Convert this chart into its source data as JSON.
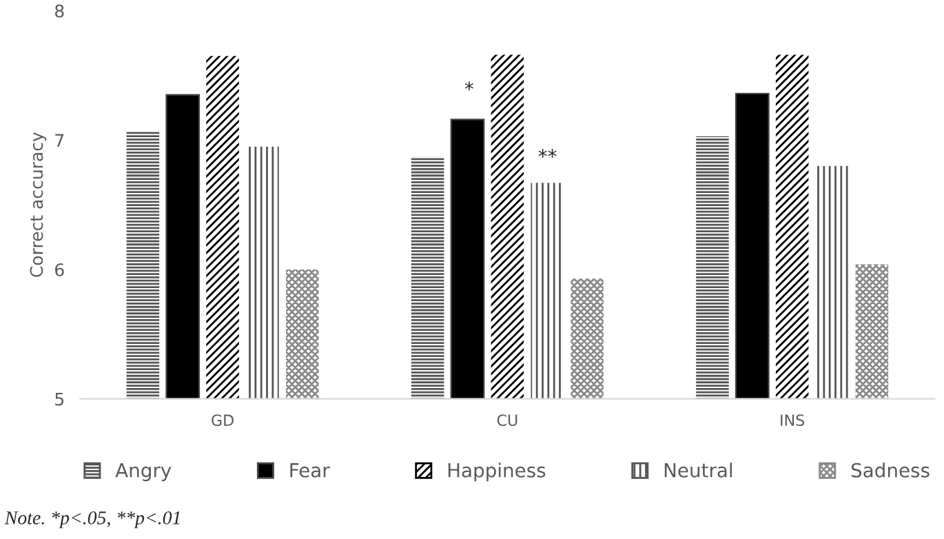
{
  "chart_data": {
    "type": "bar",
    "ylabel": "Correct accuracy",
    "categories": [
      "GD",
      "CU",
      "INS"
    ],
    "series": [
      {
        "name": "Angry",
        "color": "#555555",
        "values": [
          7.07,
          6.87,
          7.03
        ]
      },
      {
        "name": "Fear",
        "color": "#000000",
        "values": [
          7.35,
          7.16,
          7.36
        ]
      },
      {
        "name": "Happiness",
        "color": "#000000",
        "values": [
          7.65,
          7.66,
          7.66
        ]
      },
      {
        "name": "Neutral",
        "color": "#555555",
        "values": [
          6.95,
          6.67,
          6.8
        ]
      },
      {
        "name": "Sadness",
        "color": "#888888",
        "values": [
          6.0,
          5.93,
          6.04
        ]
      }
    ],
    "ylim": [
      5,
      8
    ],
    "yticks": [
      5,
      6,
      7,
      8
    ],
    "grid": false,
    "legend": "bottom",
    "annotations": [
      "*",
      "**",
      "Note. *p<.05, **p<.01"
    ]
  }
}
